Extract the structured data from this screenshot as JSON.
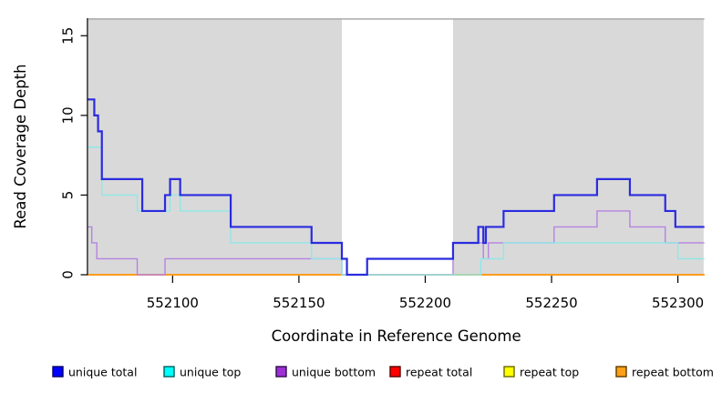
{
  "chart_data": {
    "type": "line",
    "step": true,
    "title": "",
    "xlabel": "Coordinate in Reference Genome",
    "ylabel": "Read Coverage Depth",
    "xlim": [
      552066.5,
      552310.5
    ],
    "ylim": [
      0,
      16.1
    ],
    "xticks": [
      552100,
      552150,
      552200,
      552250,
      552300
    ],
    "yticks": [
      0,
      5,
      10,
      15
    ],
    "grid": false,
    "legend_position": "bottom",
    "plot_bg": "#ffffff",
    "shaded_regions": [
      {
        "name": "left-gray-region",
        "from": 552066.5,
        "to": 552167.0,
        "color": "#d9d9d9"
      },
      {
        "name": "right-gray-region",
        "from": 552211.0,
        "to": 552310.2,
        "color": "#d9d9d9"
      }
    ],
    "boundary_line": {
      "value": 16.05,
      "color": "#ababab"
    },
    "series": [
      {
        "name": "repeat total",
        "color": "#dd0000",
        "width": 1.4,
        "points": [
          [
            552066.5,
            0
          ],
          [
            552310.5,
            0
          ]
        ]
      },
      {
        "name": "repeat top",
        "color": "#f2e41f",
        "width": 1.4,
        "points": [
          [
            552066.5,
            0
          ],
          [
            552310.5,
            0
          ]
        ]
      },
      {
        "name": "repeat bottom",
        "color": "#ff9d1c",
        "width": 2,
        "points": [
          [
            552066.5,
            0
          ],
          [
            552310.5,
            0
          ]
        ]
      },
      {
        "name": "unique bottom",
        "color": "#b583e3",
        "width": 1.4,
        "points": [
          [
            552066.5,
            3
          ],
          [
            552068,
            2
          ],
          [
            552070,
            1
          ],
          [
            552086,
            0
          ],
          [
            552097,
            1
          ],
          [
            552167,
            0
          ],
          [
            552211,
            2
          ],
          [
            552223,
            1
          ],
          [
            552225,
            2
          ],
          [
            552251,
            3
          ],
          [
            552268,
            4
          ],
          [
            552281,
            3
          ],
          [
            552295,
            2
          ],
          [
            552310.5,
            2
          ]
        ]
      },
      {
        "name": "unique top",
        "color": "#8fe8e8",
        "width": 1.4,
        "points": [
          [
            552066.5,
            8
          ],
          [
            552072,
            5
          ],
          [
            552086,
            4
          ],
          [
            552099,
            5
          ],
          [
            552103,
            4
          ],
          [
            552123,
            2
          ],
          [
            552155,
            1
          ],
          [
            552167,
            0
          ],
          [
            552222,
            1
          ],
          [
            552231,
            2
          ],
          [
            552300,
            1
          ],
          [
            552310.5,
            1
          ]
        ]
      },
      {
        "name": "unique total",
        "color": "#2b2bdf",
        "width": 2.2,
        "points": [
          [
            552066.5,
            11
          ],
          [
            552069,
            10
          ],
          [
            552070.5,
            9
          ],
          [
            552072,
            6
          ],
          [
            552088,
            4
          ],
          [
            552097,
            5
          ],
          [
            552099,
            6
          ],
          [
            552103,
            5
          ],
          [
            552123,
            3
          ],
          [
            552155,
            2
          ],
          [
            552167,
            1
          ],
          [
            552169,
            0
          ],
          [
            552177,
            1
          ],
          [
            552211,
            2
          ],
          [
            552221,
            3
          ],
          [
            552223,
            2
          ],
          [
            552224,
            3
          ],
          [
            552231,
            4
          ],
          [
            552251,
            5
          ],
          [
            552268,
            6
          ],
          [
            552281,
            5
          ],
          [
            552295,
            4
          ],
          [
            552299,
            3
          ],
          [
            552310.5,
            3
          ]
        ]
      }
    ],
    "legend": [
      {
        "label": "unique total",
        "fill": "#0000ff",
        "border": "#000066"
      },
      {
        "label": "unique top",
        "fill": "#00ffff",
        "border": "#005e5e"
      },
      {
        "label": "unique bottom",
        "fill": "#9d2fd6",
        "border": "#2e0d49"
      },
      {
        "label": "repeat total",
        "fill": "#ff0000",
        "border": "#550000"
      },
      {
        "label": "repeat top",
        "fill": "#ffff00",
        "border": "#6a6a00"
      },
      {
        "label": "repeat bottom",
        "fill": "#ffa018",
        "border": "#5e3a00"
      }
    ]
  }
}
